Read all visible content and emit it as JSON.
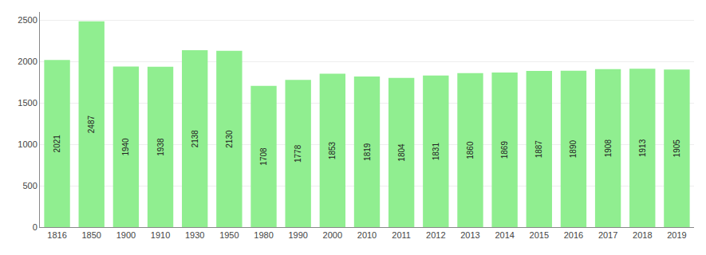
{
  "chart_data": {
    "type": "bar",
    "categories": [
      "1816",
      "1850",
      "1900",
      "1910",
      "1930",
      "1950",
      "1980",
      "1990",
      "2000",
      "2010",
      "2011",
      "2012",
      "2013",
      "2014",
      "2015",
      "2016",
      "2017",
      "2018",
      "2019"
    ],
    "values": [
      2021,
      2487,
      1940,
      1938,
      2138,
      2130,
      1708,
      1778,
      1853,
      1819,
      1804,
      1831,
      1860,
      1869,
      1887,
      1890,
      1908,
      1913,
      1905
    ],
    "color": "#90EE90",
    "ylim": [
      0,
      2600
    ],
    "yticks": [
      0,
      500,
      1000,
      1500,
      2000,
      2500
    ],
    "grid": true,
    "data_labels": true
  }
}
